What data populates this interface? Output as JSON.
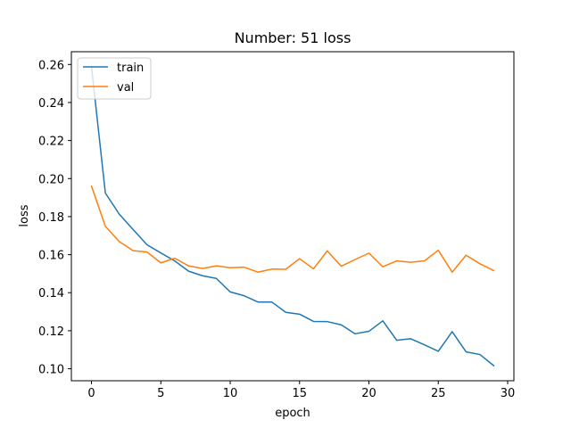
{
  "chart_data": {
    "type": "line",
    "title": "Number: 51 loss",
    "xlabel": "epoch",
    "ylabel": "loss",
    "xlim": [
      -1.45,
      30.45
    ],
    "ylim": [
      0.0937,
      0.2667
    ],
    "xticks": [
      0,
      5,
      10,
      15,
      20,
      25,
      30
    ],
    "yticks": [
      0.1,
      0.12,
      0.14,
      0.16,
      0.18,
      0.2,
      0.22,
      0.24,
      0.26
    ],
    "grid": false,
    "legend_position": "top-left",
    "x": [
      0,
      1,
      2,
      3,
      4,
      5,
      6,
      7,
      8,
      9,
      10,
      11,
      12,
      13,
      14,
      15,
      16,
      17,
      18,
      19,
      20,
      21,
      22,
      23,
      24,
      25,
      26,
      27,
      28,
      29
    ],
    "series": [
      {
        "name": "train",
        "color": "#1f77b4",
        "values": [
          0.2588,
          0.1924,
          0.1813,
          0.1732,
          0.1652,
          0.1609,
          0.1567,
          0.1513,
          0.1489,
          0.1475,
          0.1404,
          0.1384,
          0.1351,
          0.1351,
          0.1297,
          0.1287,
          0.1249,
          0.1248,
          0.1231,
          0.1184,
          0.1197,
          0.1252,
          0.115,
          0.1158,
          0.1126,
          0.1092,
          0.1195,
          0.1089,
          0.1075,
          0.1016
        ]
      },
      {
        "name": "val",
        "color": "#ff7f0e",
        "values": [
          0.196,
          0.1749,
          0.1669,
          0.1621,
          0.1614,
          0.1557,
          0.1581,
          0.1541,
          0.1527,
          0.1541,
          0.1531,
          0.1534,
          0.1508,
          0.1524,
          0.1523,
          0.1579,
          0.1525,
          0.162,
          0.1539,
          0.1574,
          0.1608,
          0.1536,
          0.1567,
          0.156,
          0.1567,
          0.1623,
          0.1508,
          0.1597,
          0.1552,
          0.1516
        ]
      }
    ]
  }
}
